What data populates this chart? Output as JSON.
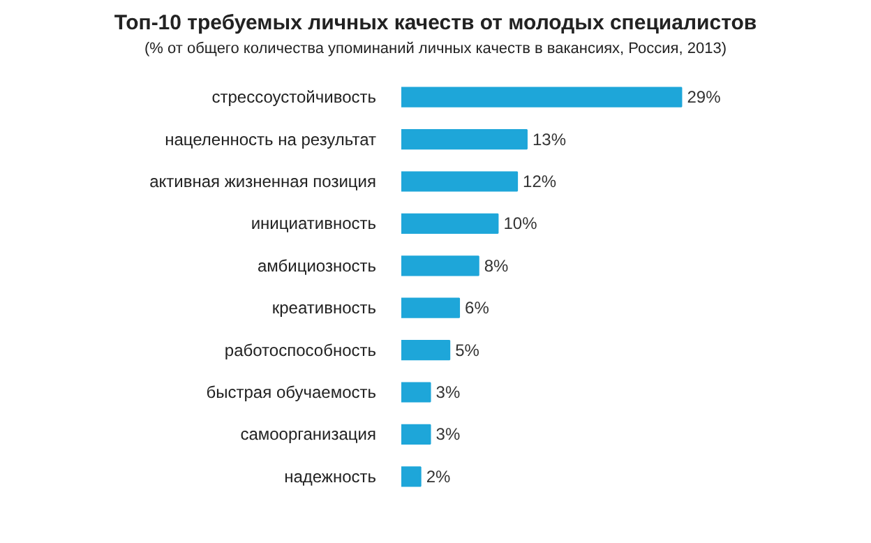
{
  "chart_data": {
    "type": "bar",
    "orientation": "horizontal",
    "title": "Топ-10 требуемых личных качеств от молодых специалистов",
    "subtitle": "(% от общего количества упоминаний личных качеств в вакансиях, Россия, 2013)",
    "categories": [
      "стрессоустойчивость",
      "нацеленность на результат",
      "активная жизненная позиция",
      "инициативность",
      "амбициозность",
      "креативность",
      "работоспособность",
      "быстрая обучаемость",
      "самоорганизация",
      "надежность"
    ],
    "values": [
      29,
      13,
      12,
      10,
      8,
      6,
      5,
      3,
      3,
      2
    ],
    "value_labels": [
      "29%",
      "13%",
      "12%",
      "10%",
      "8%",
      "6%",
      "5%",
      "3%",
      "3%",
      "2%"
    ],
    "color": "#1ea6d9",
    "grid": false
  }
}
